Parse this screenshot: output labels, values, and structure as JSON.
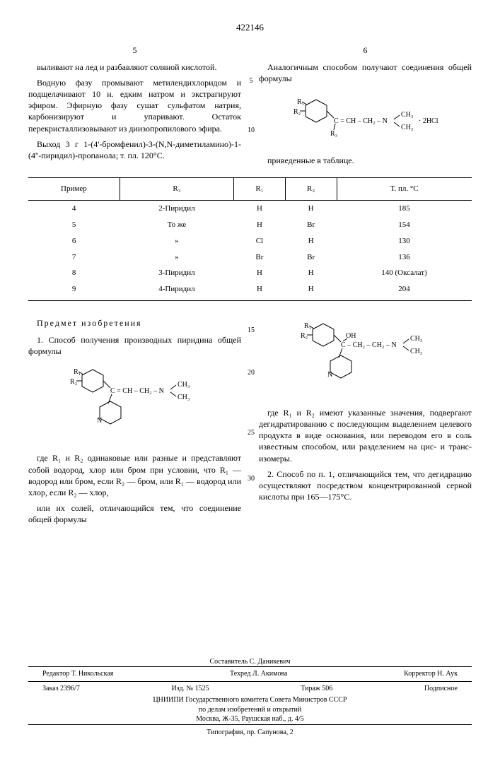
{
  "patent_number": "422146",
  "page_left": "5",
  "page_right": "6",
  "col_left": {
    "p1": "выливают на лед и разбавляют соляной кислотой.",
    "p2": "Водную фазу промывают метилендихлоридом и подщелачивают 10 н. едким натром и экстрагируют эфиром. Эфирную фазу сушат сульфатом натрия, карбонизируют и упаривают. Остаток перекристаллизовывают из диизопропилового эфира.",
    "p3": "Выход 3 г 1-(4'-бромфенил)-3-(N,N-диметиламино)-1-(4''-пиридил)-пропанола; т. пл. 120°C."
  },
  "col_right": {
    "p1": "Аналогичным способом получают соединения общей формулы",
    "p2": "приведенные в таблице."
  },
  "formula1_label": "· 2HCl",
  "table": {
    "headers": [
      "Пример",
      "R₃",
      "R₁",
      "R₂",
      "Т. пл. °C"
    ],
    "rows": [
      [
        "4",
        "2-Пиридил",
        "H",
        "H",
        "185"
      ],
      [
        "5",
        "То же",
        "H",
        "Br",
        "154"
      ],
      [
        "6",
        "»",
        "Cl",
        "H",
        "130"
      ],
      [
        "7",
        "»",
        "Br",
        "Br",
        "136"
      ],
      [
        "8",
        "3-Пиридил",
        "H",
        "H",
        "140 (Оксалат)"
      ],
      [
        "9",
        "4-Пиридил",
        "H",
        "H",
        "204"
      ]
    ]
  },
  "section_title": "Предмет изобретения",
  "claims_left": {
    "p1": "1. Способ получения производных пиридина общей формулы",
    "p2": "где R₁ и R₂ одинаковые или разные и представляют собой водород, хлор или бром при условии, что R₁ — водород или бром, если R₂ — бром, или R₁ — водород или хлор, если R₂ — хлор,",
    "p3": "или их солей, отличающийся тем, что соединение общей формулы"
  },
  "claims_right": {
    "p1": "где R₁ и R₂ имеют указанные значения, подвергают дегидратированию с последующим выделением целевого продукта в виде основания, или переводом его в соль известным способом, или разделением на цис- и транс-изомеры.",
    "p2": "2. Способ по п. 1, отличающийся тем, что дегидрацию осуществляют посредством концентрированной серной кислоты при 165—175°C."
  },
  "line_markers": [
    "5",
    "10",
    "15",
    "20",
    "25",
    "30"
  ],
  "formula_parts": {
    "r1": "R₁",
    "r2": "R₂",
    "r3": "R₃",
    "ch_chain1": "C = CH – CH₂ – N",
    "ch_chain2": "C – CH₂ – CH₂ – N",
    "ch3_top": "CH₃",
    "ch3_bot": "CH₃",
    "oh": "OH",
    "n": "N"
  },
  "footer": {
    "compiler": "Составитель С. Даникевич",
    "editor": "Редактор Т. Никольская",
    "tech": "Техред Л. Акимова",
    "corrector": "Корректор Н. Аук",
    "order": "Заказ 2396/7",
    "izd": "Изд. № 1525",
    "tirazh": "Тираж 506",
    "sub": "Подписное",
    "org1": "ЦНИИПИ Государственного комитета Совета Министров СССР",
    "org2": "по делам изобретений и открытий",
    "addr": "Москва, Ж-35, Раушская наб., д. 4/5",
    "typo": "Типография, пр. Сапунова, 2"
  },
  "style": {
    "text_color": "#000000",
    "bg_color": "#ffffff",
    "border_color": "#000000",
    "body_fontsize": 12,
    "table_fontsize": 11,
    "footer_fontsize": 10
  }
}
